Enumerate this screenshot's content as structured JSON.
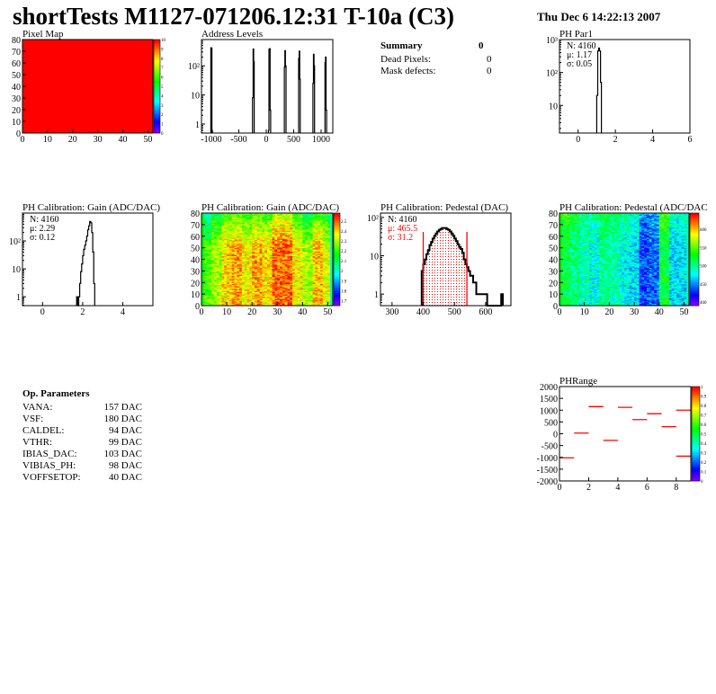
{
  "header": {
    "title": "shortTests M1127-071206.12:31 T-10a (C3)",
    "date": "Thu Dec  6 14:22:13 2007"
  },
  "summary": {
    "heading": "Summary",
    "heading_value": "0",
    "rows": [
      {
        "label": "Dead Pixels:",
        "value": "0"
      },
      {
        "label": "Mask defects:",
        "value": "0"
      }
    ]
  },
  "op_parameters": {
    "heading": "Op. Parameters",
    "rows": [
      {
        "label": "VANA:",
        "value": "157 DAC"
      },
      {
        "label": "VSF:",
        "value": "180 DAC"
      },
      {
        "label": "CALDEL:",
        "value": "94 DAC"
      },
      {
        "label": "VTHR:",
        "value": "99 DAC"
      },
      {
        "label": "IBIAS_DAC:",
        "value": "103 DAC"
      },
      {
        "label": "VIBIAS_PH:",
        "value": "98 DAC"
      },
      {
        "label": "VOFFSETOP:",
        "value": "40 DAC"
      }
    ]
  },
  "colors": {
    "frame": "#000000",
    "hist_line": "#000000",
    "highlight": "#ff0000"
  },
  "chart_data": [
    {
      "id": "pixelmap",
      "type": "heatmap",
      "title": "Pixel Map",
      "xlim": [
        0,
        52
      ],
      "ylim": [
        0,
        80
      ],
      "zlim": [
        0,
        10
      ],
      "xticks": [
        0,
        10,
        20,
        30,
        40,
        50
      ],
      "yticks": [
        0,
        10,
        20,
        30,
        40,
        50,
        60,
        70,
        80
      ],
      "zticks": [
        0,
        1,
        2,
        3,
        4,
        5,
        6,
        7,
        8,
        9,
        10
      ],
      "column_means": [
        10,
        10,
        10,
        10,
        10,
        10,
        10,
        10,
        10,
        10,
        10,
        10,
        10
      ],
      "top_row_drop": 0
    },
    {
      "id": "address",
      "type": "bar",
      "title": "Address Levels",
      "log_y": true,
      "xlim": [
        -1180,
        1213
      ],
      "ylim": [
        0.49,
        800
      ],
      "xticks": [
        -1000,
        -500,
        0,
        500,
        1000
      ],
      "yticks": [
        {
          "v": 1,
          "label": "1"
        },
        {
          "v": 10,
          "label": "10"
        },
        {
          "v": 100,
          "label": "10²"
        }
      ],
      "bin_width": 10,
      "peaks": [
        {
          "x": -1010,
          "counts": [
            420,
            400,
            0.6
          ]
        },
        {
          "x": -250,
          "counts": [
            8,
            380,
            140
          ]
        },
        {
          "x": 40,
          "counts": [
            0.6,
            370,
            390,
            3
          ]
        },
        {
          "x": 330,
          "counts": [
            90,
            330,
            100
          ]
        },
        {
          "x": 590,
          "counts": [
            180,
            320,
            35
          ]
        },
        {
          "x": 850,
          "counts": [
            25,
            250,
            100
          ]
        },
        {
          "x": 1070,
          "counts": [
            130,
            200,
            3
          ]
        }
      ]
    },
    {
      "id": "phpar1",
      "type": "bar",
      "title": "PH Par1",
      "log_y": true,
      "xlim": [
        -1,
        6
      ],
      "ylim": [
        1.45,
        1000
      ],
      "xticks": [
        0,
        2,
        4,
        6
      ],
      "yticks": [
        {
          "v": 10,
          "label": "10"
        },
        {
          "v": 100,
          "label": "10²"
        },
        {
          "v": 1000,
          "label": "10³"
        }
      ],
      "x_start": 1.0,
      "bin_width": 0.05,
      "counts": [
        20,
        450,
        550,
        450,
        50
      ],
      "stats": [
        "N: 4160",
        "μ: 1.17",
        "σ: 0.05"
      ]
    },
    {
      "id": "gainhist",
      "type": "bar",
      "title": "PH Calibration: Gain (ADC/DAC)",
      "log_y": true,
      "xlim": [
        -1,
        5.5
      ],
      "ylim": [
        0.48,
        1000
      ],
      "xticks": [
        0,
        2,
        4
      ],
      "yticks": [
        {
          "v": 1,
          "label": "1"
        },
        {
          "v": 10,
          "label": "10"
        },
        {
          "v": 100,
          "label": "10²"
        }
      ],
      "x_start": 1.7,
      "bin_width": 0.05,
      "counts": [
        1,
        0,
        1,
        3,
        8,
        15,
        30,
        50,
        70,
        100,
        150,
        250,
        350,
        500,
        450,
        200,
        40,
        3
      ],
      "stats": [
        "N: 4160",
        "μ: 2.29",
        "σ: 0.12"
      ]
    },
    {
      "id": "gainmap",
      "type": "heatmap",
      "title": "PH Calibration: Gain (ADC/DAC)",
      "xlim": [
        0,
        52
      ],
      "ylim": [
        0,
        80
      ],
      "zlim": [
        1.65,
        2.58
      ],
      "xticks": [
        0,
        10,
        20,
        30,
        40,
        50
      ],
      "yticks": [
        0,
        10,
        20,
        30,
        40,
        50,
        60,
        70,
        80
      ],
      "zticks": [
        1.7,
        1.8,
        1.9,
        2,
        2.1,
        2.2,
        2.3,
        2.4,
        2.5
      ],
      "column_means": [
        2.22,
        2.3,
        2.4,
        2.44,
        2.38,
        2.44,
        2.4,
        2.5,
        2.5,
        2.38,
        2.3,
        2.42,
        2.34
      ],
      "top_row_drop": 0.2
    },
    {
      "id": "pedhist",
      "type": "bar",
      "title": "PH Calibration: Pedestal (DAC)",
      "log_y": true,
      "xlim": [
        263,
        681
      ],
      "ylim": [
        0.5,
        130
      ],
      "xticks": [
        300,
        400,
        500,
        600
      ],
      "yticks": [
        {
          "v": 1,
          "label": "1"
        },
        {
          "v": 10,
          "label": "10"
        },
        {
          "v": 100,
          "label": "10²"
        }
      ],
      "x_start": 395,
      "bin_width": 5,
      "counts": [
        4,
        6,
        8,
        11,
        14,
        19,
        23,
        28,
        33,
        38,
        43,
        47,
        50,
        53,
        53,
        53,
        50,
        47,
        43,
        38,
        33,
        28,
        24,
        20,
        17,
        15,
        12,
        8,
        6,
        5,
        4,
        3,
        3,
        2,
        2,
        1,
        1,
        1,
        1,
        1,
        1,
        1,
        0,
        0,
        0,
        0,
        0,
        0,
        0,
        0,
        0,
        1
      ],
      "fit_range": [
        400,
        540
      ],
      "stats": [
        "N: 4160",
        "μ: 465.5",
        "σ: 31.2"
      ]
    },
    {
      "id": "pedmap",
      "type": "heatmap",
      "title": "PH Calibration: Pedestal (ADC/DAC",
      "xlim": [
        0,
        52
      ],
      "ylim": [
        0,
        80
      ],
      "zlim": [
        390,
        645
      ],
      "xticks": [
        0,
        10,
        20,
        30,
        40,
        50
      ],
      "yticks": [
        0,
        10,
        20,
        30,
        40,
        50,
        60,
        70,
        80
      ],
      "zticks": [
        400,
        450,
        500,
        550,
        600
      ],
      "column_means": [
        520,
        505,
        490,
        480,
        500,
        492,
        480,
        470,
        432,
        440,
        520,
        470,
        470
      ],
      "top_row_drop": -20
    },
    {
      "id": "phrange",
      "type": "scatter",
      "title": "PHRange",
      "xlim": [
        0,
        9
      ],
      "ylim": [
        -2000,
        2000
      ],
      "zlim": [
        0,
        1
      ],
      "xticks": [
        0,
        2,
        4,
        6,
        8
      ],
      "yticks": [
        -2000,
        -1500,
        -1000,
        -500,
        0,
        500,
        1000,
        1500,
        2000
      ],
      "zticks": [
        0,
        0.1,
        0.2,
        0.3,
        0.4,
        0.5,
        0.6,
        0.7,
        0.8,
        0.9,
        1
      ],
      "segments": [
        {
          "x0": 0,
          "x1": 1,
          "y": -1020
        },
        {
          "x0": 1,
          "x1": 2,
          "y": 30
        },
        {
          "x0": 2,
          "x1": 3,
          "y": 1150
        },
        {
          "x0": 3,
          "x1": 4,
          "y": -280
        },
        {
          "x0": 4,
          "x1": 5,
          "y": 1120
        },
        {
          "x0": 5,
          "x1": 6,
          "y": 600
        },
        {
          "x0": 6,
          "x1": 7,
          "y": 850
        },
        {
          "x0": 7,
          "x1": 8,
          "y": 300
        },
        {
          "x0": 8,
          "x1": 9,
          "y": 1000
        },
        {
          "x0": 8,
          "x1": 9,
          "y": -950
        }
      ]
    }
  ]
}
